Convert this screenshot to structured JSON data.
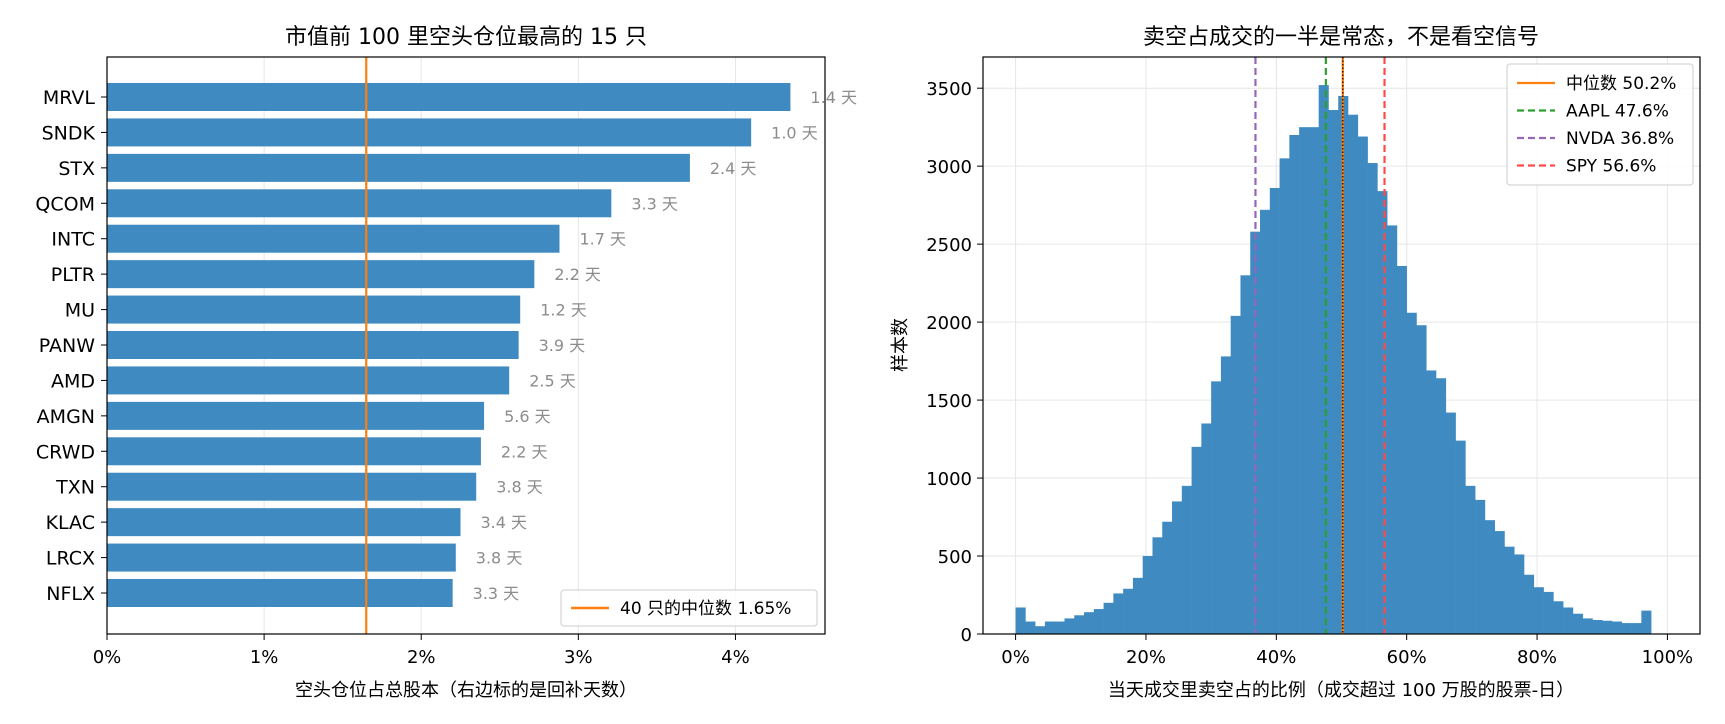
{
  "chart_data": [
    {
      "type": "bar",
      "orientation": "horizontal",
      "title": "市值前 100 里空头仓位最高的 15 只",
      "xlabel": "空头仓位占总股本（右边标的是回补天数）",
      "ylabel": "",
      "xlim": [
        0,
        4.57
      ],
      "xticks": [
        0,
        1,
        2,
        3,
        4
      ],
      "xtick_labels": [
        "0%",
        "1%",
        "2%",
        "3%",
        "4%"
      ],
      "grid": true,
      "categories": [
        "MRVL",
        "SNDK",
        "STX",
        "QCOM",
        "INTC",
        "PLTR",
        "MU",
        "PANW",
        "AMD",
        "AMGN",
        "CRWD",
        "TXN",
        "KLAC",
        "LRCX",
        "NFLX"
      ],
      "values": [
        4.35,
        4.1,
        3.71,
        3.21,
        2.88,
        2.72,
        2.63,
        2.62,
        2.56,
        2.4,
        2.38,
        2.35,
        2.25,
        2.22,
        2.2
      ],
      "annotations": [
        "1.4 天",
        "1.0 天",
        "2.4 天",
        "3.3 天",
        "1.7 天",
        "2.2 天",
        "1.2 天",
        "3.9 天",
        "2.5 天",
        "5.6 天",
        "2.2 天",
        "3.8 天",
        "3.4 天",
        "3.8 天",
        "3.3 天"
      ],
      "bar_color": "#3f8ac0",
      "reference_line": {
        "value": 1.65,
        "color": "#ff7f0e"
      },
      "legend": {
        "position": "lower-right",
        "entries": [
          "40 只的中位数 1.65%"
        ]
      }
    },
    {
      "type": "histogram",
      "title": "卖空占成交的一半是常态，不是看空信号",
      "xlabel": "当天成交里卖空占的比例（成交超过 100 万股的股票-日）",
      "ylabel": "样本数",
      "xlim": [
        -5,
        105
      ],
      "ylim": [
        0,
        3700
      ],
      "xticks": [
        0,
        20,
        40,
        60,
        80,
        100
      ],
      "xtick_labels": [
        "0%",
        "20%",
        "40%",
        "60%",
        "80%",
        "100%"
      ],
      "yticks": [
        0,
        500,
        1000,
        1500,
        2000,
        2500,
        3000,
        3500
      ],
      "ytick_labels": [
        "0",
        "500",
        "1000",
        "1500",
        "2000",
        "2500",
        "3000",
        "3500"
      ],
      "grid": true,
      "bin_width": 1.5,
      "bin_start": 0,
      "counts": [
        170,
        80,
        50,
        80,
        80,
        100,
        120,
        140,
        160,
        200,
        260,
        290,
        360,
        500,
        620,
        720,
        850,
        950,
        1200,
        1350,
        1620,
        1780,
        2040,
        2300,
        2580,
        2720,
        2860,
        3050,
        3200,
        3250,
        3250,
        3520,
        3360,
        3450,
        3330,
        3190,
        3020,
        2840,
        2620,
        2360,
        2060,
        1980,
        1690,
        1640,
        1420,
        1240,
        950,
        860,
        730,
        660,
        560,
        510,
        380,
        300,
        270,
        210,
        170,
        130,
        100,
        90,
        85,
        80,
        70,
        70,
        150
      ],
      "bar_color": "#3f8ac0",
      "median_value": 50.2,
      "vlines": [
        {
          "label": "中位数 50.2%",
          "value": 50.2,
          "color": "#ff7f0e",
          "style": "solid"
        },
        {
          "label": "AAPL 47.6%",
          "value": 47.6,
          "color": "#2ca02c",
          "style": "dashed"
        },
        {
          "label": "NVDA 36.8%",
          "value": 36.8,
          "color": "#9467bd",
          "style": "dashed"
        },
        {
          "label": "SPY 56.6%",
          "value": 56.6,
          "color": "#ff4a4a",
          "style": "dashed"
        }
      ],
      "legend": {
        "position": "top-right"
      }
    }
  ]
}
